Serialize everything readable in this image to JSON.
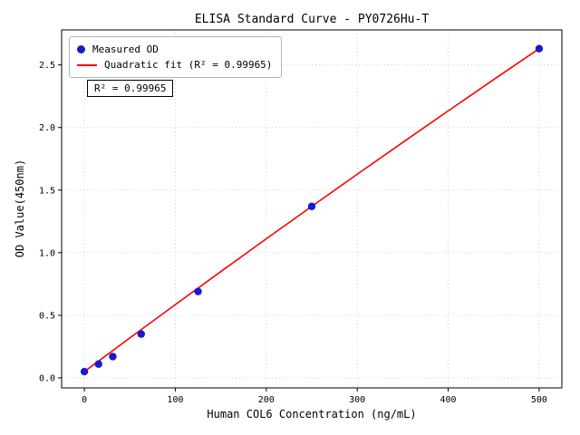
{
  "chart_data": {
    "type": "scatter",
    "title": "ELISA Standard Curve - PY0726Hu-T",
    "xlabel": "Human COL6 Concentration (ng/mL)",
    "ylabel": "OD Value(450nm)",
    "annotation": "R² = 0.99965",
    "r_squared": 0.99965,
    "legend_position": "upper left",
    "grid": true,
    "xlim": [
      -25,
      525
    ],
    "ylim": [
      -0.08,
      2.78
    ],
    "xticks": [
      0,
      100,
      200,
      300,
      400,
      500
    ],
    "xtick_labels": [
      "0",
      "100",
      "200",
      "300",
      "400",
      "500"
    ],
    "yticks": [
      0.0,
      0.5,
      1.0,
      1.5,
      2.0,
      2.5
    ],
    "ytick_labels": [
      "0.0",
      "0.5",
      "1.0",
      "1.5",
      "2.0",
      "2.5"
    ],
    "legend": [
      "Measured OD",
      "Quadratic fit (R² = 0.99965)"
    ],
    "colors": {
      "scatter": "#1a1acd",
      "fit_line": "#ff0000",
      "grid": "#c8c8c8"
    },
    "series": [
      {
        "name": "Quadratic fit (R² = 0.99965)",
        "type": "line",
        "color": "#ff0000",
        "x": [
          0,
          50,
          100,
          150,
          200,
          250,
          300,
          350,
          400,
          450,
          500
        ],
        "y": [
          0.05,
          0.319,
          0.585,
          0.849,
          1.111,
          1.37,
          1.627,
          1.881,
          2.133,
          2.383,
          2.63
        ]
      },
      {
        "name": "Measured OD",
        "type": "scatter",
        "color": "#1a1acd",
        "x": [
          0,
          15.6,
          31.25,
          62.5,
          125,
          250,
          500
        ],
        "y": [
          0.05,
          0.11,
          0.17,
          0.35,
          0.69,
          1.37,
          2.63
        ]
      }
    ]
  }
}
